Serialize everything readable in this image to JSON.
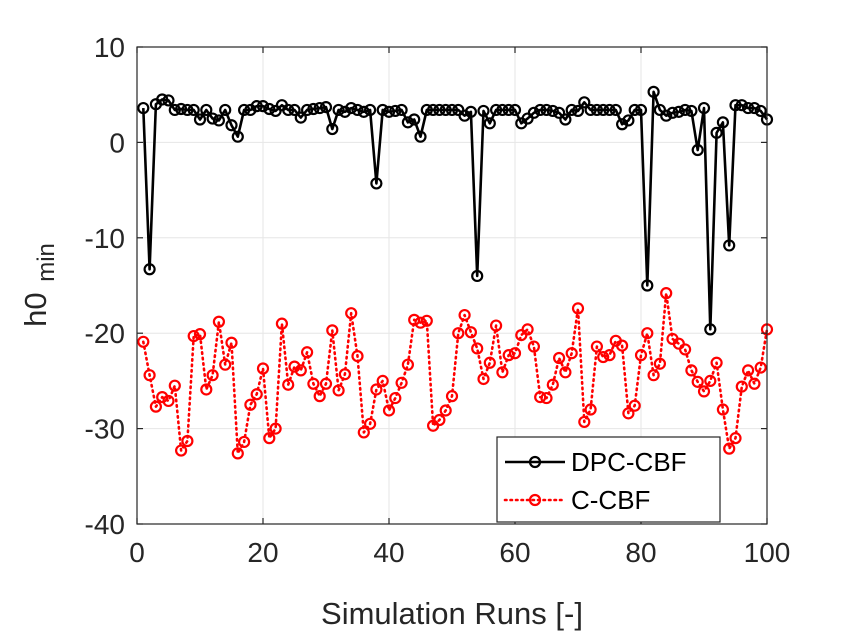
{
  "chart_data": {
    "type": "line",
    "title": "",
    "xlabel": "Simulation Runs [-]",
    "ylabel": "h0",
    "ylabel_subscript": "min",
    "xlim": [
      0,
      100
    ],
    "ylim": [
      -40,
      10
    ],
    "xticks": [
      0,
      20,
      40,
      60,
      80,
      100
    ],
    "yticks": [
      10,
      0,
      -10,
      -20,
      -30,
      -40
    ],
    "grid": true,
    "legend_position": "bottom-right",
    "x": [
      1,
      2,
      3,
      4,
      5,
      6,
      7,
      8,
      9,
      10,
      11,
      12,
      13,
      14,
      15,
      16,
      17,
      18,
      19,
      20,
      21,
      22,
      23,
      24,
      25,
      26,
      27,
      28,
      29,
      30,
      31,
      32,
      33,
      34,
      35,
      36,
      37,
      38,
      39,
      40,
      41,
      42,
      43,
      44,
      45,
      46,
      47,
      48,
      49,
      50,
      51,
      52,
      53,
      54,
      55,
      56,
      57,
      58,
      59,
      60,
      61,
      62,
      63,
      64,
      65,
      66,
      67,
      68,
      69,
      70,
      71,
      72,
      73,
      74,
      75,
      76,
      77,
      78,
      79,
      80,
      81,
      82,
      83,
      84,
      85,
      86,
      87,
      88,
      89,
      90,
      91,
      92,
      93,
      94,
      95,
      96,
      97,
      98,
      99,
      100
    ],
    "series": [
      {
        "name": "DPC-CBF",
        "color": "#000000",
        "line_style": "solid",
        "values": [
          3.6,
          -13.3,
          4,
          4.5,
          4.4,
          3.4,
          3.5,
          3.4,
          3.4,
          2.4,
          3.4,
          2.5,
          2.3,
          3.4,
          1.8,
          0.6,
          3.4,
          3.4,
          3.8,
          3.8,
          3.5,
          3.3,
          3.9,
          3.4,
          3.4,
          2.6,
          3.4,
          3.5,
          3.6,
          3.7,
          1.4,
          3.4,
          3.2,
          3.6,
          3.4,
          3.2,
          3.4,
          -4.3,
          3.4,
          3.2,
          3.3,
          3.4,
          2.1,
          2.4,
          0.6,
          3.4,
          3.4,
          3.4,
          3.4,
          3.4,
          3.4,
          2.8,
          3.2,
          -14,
          3.3,
          2,
          3.4,
          3.4,
          3.4,
          3.4,
          2,
          2.5,
          3.1,
          3.4,
          3.4,
          3.3,
          3.1,
          2.4,
          3.4,
          3.3,
          4.2,
          3.4,
          3.4,
          3.4,
          3.4,
          3.4,
          1.9,
          2.3,
          3.4,
          3.4,
          -15,
          5.3,
          3.4,
          2.8,
          3.1,
          3.2,
          3.4,
          3.3,
          -0.8,
          3.6,
          -19.6,
          1,
          2.1,
          -10.8,
          3.9,
          3.9,
          3.6,
          3.6,
          3.3,
          2.4
        ]
      },
      {
        "name": "C-CBF",
        "color": "#ff0000",
        "line_style": "dotted",
        "values": [
          -20.9,
          -24.4,
          -27.7,
          -26.7,
          -27.1,
          -25.5,
          -32.3,
          -31.3,
          -20.3,
          -20.1,
          -25.9,
          -24.4,
          -18.8,
          -23.3,
          -21,
          -32.6,
          -31.4,
          -27.5,
          -26.4,
          -23.7,
          -31,
          -30,
          -19,
          -25.4,
          -23.5,
          -23.9,
          -22,
          -25.3,
          -26.6,
          -25.3,
          -19.7,
          -26,
          -24.3,
          -17.9,
          -22.4,
          -30.4,
          -29.5,
          -25.9,
          -25,
          -28.1,
          -26.8,
          -25.2,
          -23.3,
          -18.6,
          -18.9,
          -18.7,
          -29.7,
          -29.1,
          -28.1,
          -26.6,
          -20,
          -18.1,
          -19.9,
          -21.6,
          -24.8,
          -23.1,
          -19.2,
          -24.1,
          -22.3,
          -22.1,
          -20.2,
          -19.6,
          -21.4,
          -26.7,
          -26.8,
          -25.4,
          -22.6,
          -24.1,
          -22.1,
          -17.4,
          -29.3,
          -28,
          -21.4,
          -22.5,
          -22.3,
          -20.8,
          -21.3,
          -28.4,
          -27.6,
          -22.3,
          -20,
          -24.4,
          -23.2,
          -15.8,
          -20.6,
          -21.1,
          -21.7,
          -23.9,
          -25.1,
          -26.1,
          -25,
          -23.1,
          -28,
          -32.1,
          -31,
          -25.6,
          -23.9,
          -25.3,
          -23.6,
          -19.6
        ]
      }
    ]
  }
}
